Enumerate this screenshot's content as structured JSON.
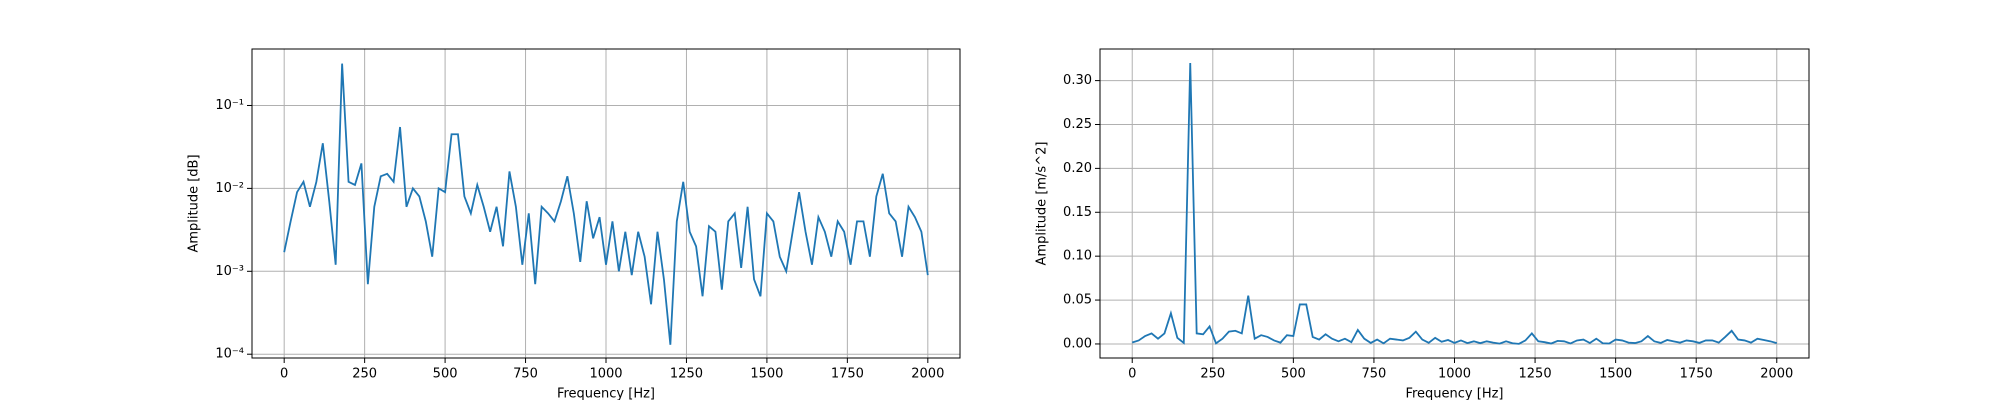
{
  "chart_data": [
    {
      "type": "line",
      "xlabel": "Frequency [Hz]",
      "ylabel": "Amplitude [dB]",
      "log_y": true,
      "grid": true,
      "x": [
        0,
        20,
        40,
        60,
        80,
        100,
        120,
        140,
        160,
        180,
        200,
        220,
        240,
        260,
        280,
        300,
        320,
        340,
        360,
        380,
        400,
        420,
        440,
        460,
        480,
        500,
        520,
        540,
        560,
        580,
        600,
        620,
        640,
        660,
        680,
        700,
        720,
        740,
        760,
        780,
        800,
        820,
        840,
        860,
        880,
        900,
        920,
        940,
        960,
        980,
        1000,
        1020,
        1040,
        1060,
        1080,
        1100,
        1120,
        1140,
        1160,
        1180,
        1200,
        1220,
        1240,
        1260,
        1280,
        1300,
        1320,
        1340,
        1360,
        1380,
        1400,
        1420,
        1440,
        1460,
        1480,
        1500,
        1520,
        1540,
        1560,
        1580,
        1600,
        1620,
        1640,
        1660,
        1680,
        1700,
        1720,
        1740,
        1760,
        1780,
        1800,
        1820,
        1840,
        1860,
        1880,
        1900,
        1920,
        1940,
        1960,
        1980,
        2000
      ],
      "series": [
        {
          "color": "#1f77b4",
          "values": [
            0.0017,
            0.004,
            0.009,
            0.012,
            0.006,
            0.012,
            0.035,
            0.007,
            0.0012,
            0.32,
            0.012,
            0.011,
            0.02,
            0.0007,
            0.006,
            0.014,
            0.015,
            0.012,
            0.055,
            0.006,
            0.01,
            0.008,
            0.004,
            0.0015,
            0.01,
            0.009,
            0.045,
            0.045,
            0.008,
            0.005,
            0.011,
            0.006,
            0.003,
            0.006,
            0.002,
            0.016,
            0.006,
            0.0012,
            0.005,
            0.0007,
            0.006,
            0.005,
            0.004,
            0.007,
            0.014,
            0.005,
            0.0013,
            0.007,
            0.0025,
            0.0045,
            0.0012,
            0.004,
            0.001,
            0.003,
            0.0009,
            0.003,
            0.0015,
            0.0004,
            0.003,
            0.0008,
            0.00013,
            0.004,
            0.012,
            0.003,
            0.002,
            0.0005,
            0.0035,
            0.003,
            0.0006,
            0.004,
            0.005,
            0.0011,
            0.006,
            0.0008,
            0.0005,
            0.005,
            0.004,
            0.0015,
            0.001,
            0.003,
            0.009,
            0.003,
            0.0012,
            0.0045,
            0.003,
            0.0015,
            0.004,
            0.003,
            0.0012,
            0.004,
            0.004,
            0.0015,
            0.008,
            0.015,
            0.005,
            0.004,
            0.0015,
            0.006,
            0.0045,
            0.003,
            0.0009
          ]
        }
      ],
      "xlim": [
        -100,
        2100
      ],
      "xticks": [
        0,
        250,
        500,
        750,
        1000,
        1250,
        1500,
        1750,
        2000
      ],
      "ylim": [
        9e-05,
        0.48
      ],
      "yticks": [
        {
          "value": 0.0001,
          "label": "10⁻⁴"
        },
        {
          "value": 0.001,
          "label": "10⁻³"
        },
        {
          "value": 0.01,
          "label": "10⁻²"
        },
        {
          "value": 0.1,
          "label": "10⁻¹"
        }
      ]
    },
    {
      "type": "line",
      "xlabel": "Frequency [Hz]",
      "ylabel": "Amplitude [m/s^2]",
      "log_y": false,
      "grid": true,
      "x": [
        0,
        20,
        40,
        60,
        80,
        100,
        120,
        140,
        160,
        180,
        200,
        220,
        240,
        260,
        280,
        300,
        320,
        340,
        360,
        380,
        400,
        420,
        440,
        460,
        480,
        500,
        520,
        540,
        560,
        580,
        600,
        620,
        640,
        660,
        680,
        700,
        720,
        740,
        760,
        780,
        800,
        820,
        840,
        860,
        880,
        900,
        920,
        940,
        960,
        980,
        1000,
        1020,
        1040,
        1060,
        1080,
        1100,
        1120,
        1140,
        1160,
        1180,
        1200,
        1220,
        1240,
        1260,
        1280,
        1300,
        1320,
        1340,
        1360,
        1380,
        1400,
        1420,
        1440,
        1460,
        1480,
        1500,
        1520,
        1540,
        1560,
        1580,
        1600,
        1620,
        1640,
        1660,
        1680,
        1700,
        1720,
        1740,
        1760,
        1780,
        1800,
        1820,
        1840,
        1860,
        1880,
        1900,
        1920,
        1940,
        1960,
        1980,
        2000
      ],
      "series": [
        {
          "color": "#1f77b4",
          "values": [
            0.0017,
            0.004,
            0.009,
            0.012,
            0.006,
            0.012,
            0.035,
            0.007,
            0.0012,
            0.32,
            0.012,
            0.011,
            0.02,
            0.0007,
            0.006,
            0.014,
            0.015,
            0.012,
            0.055,
            0.006,
            0.01,
            0.008,
            0.004,
            0.0015,
            0.01,
            0.009,
            0.045,
            0.045,
            0.008,
            0.005,
            0.011,
            0.006,
            0.003,
            0.006,
            0.002,
            0.016,
            0.006,
            0.0012,
            0.005,
            0.0007,
            0.006,
            0.005,
            0.004,
            0.007,
            0.014,
            0.005,
            0.0013,
            0.007,
            0.0025,
            0.0045,
            0.0012,
            0.004,
            0.001,
            0.003,
            0.0009,
            0.003,
            0.0015,
            0.0004,
            0.003,
            0.0008,
            0.00013,
            0.004,
            0.012,
            0.003,
            0.002,
            0.0005,
            0.0035,
            0.003,
            0.0006,
            0.004,
            0.005,
            0.0011,
            0.006,
            0.0008,
            0.0005,
            0.005,
            0.004,
            0.0015,
            0.001,
            0.003,
            0.009,
            0.003,
            0.0012,
            0.0045,
            0.003,
            0.0015,
            0.004,
            0.003,
            0.0012,
            0.004,
            0.004,
            0.0015,
            0.008,
            0.015,
            0.005,
            0.004,
            0.0015,
            0.006,
            0.0045,
            0.003,
            0.0009
          ]
        }
      ],
      "xlim": [
        -100,
        2100
      ],
      "xticks": [
        0,
        250,
        500,
        750,
        1000,
        1250,
        1500,
        1750,
        2000
      ],
      "ylim": [
        -0.016,
        0.336
      ],
      "yticks": [
        {
          "value": 0,
          "label": "0.00"
        },
        {
          "value": 0.05,
          "label": "0.05"
        },
        {
          "value": 0.1,
          "label": "0.10"
        },
        {
          "value": 0.15,
          "label": "0.15"
        },
        {
          "value": 0.2,
          "label": "0.20"
        },
        {
          "value": 0.25,
          "label": "0.25"
        },
        {
          "value": 0.3,
          "label": "0.30"
        }
      ]
    }
  ]
}
